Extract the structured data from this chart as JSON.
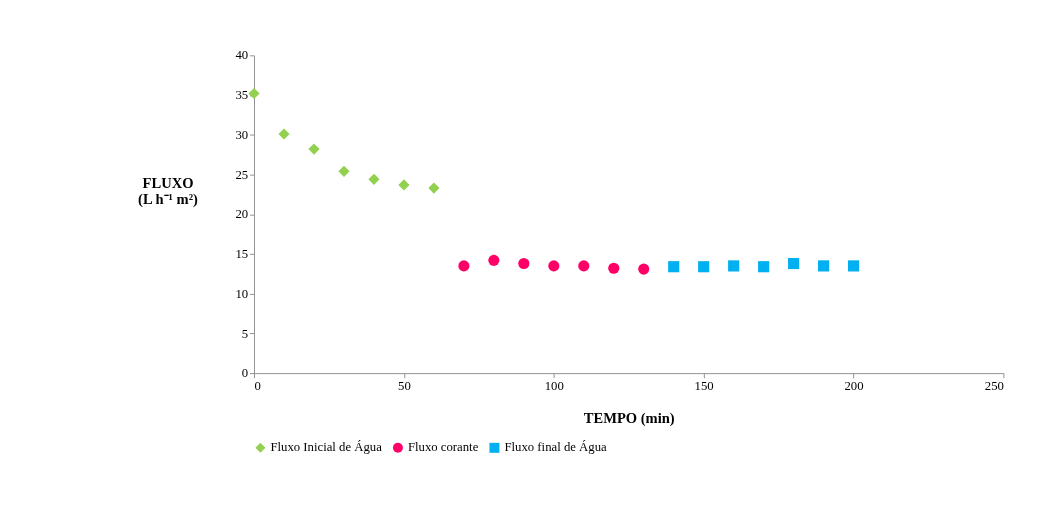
{
  "chart_data": {
    "type": "scatter",
    "xlabel": "TEMPO (min)",
    "ylabel": "FLUXO\n(L h⁻¹ m²)",
    "xlim": [
      0,
      250
    ],
    "xticks": [
      0,
      50,
      100,
      150,
      200,
      250
    ],
    "ylim": [
      0,
      40
    ],
    "yticks": [
      0,
      5,
      10,
      15,
      20,
      25,
      30,
      35,
      40
    ],
    "grid": false,
    "legend": "bottom",
    "series": [
      {
        "name": "Fluxo Inicial de Água",
        "color": "#92d050",
        "marker": "diamond",
        "x": [
          0,
          10,
          20,
          30,
          40,
          50,
          60
        ],
        "values": [
          35.2,
          30.1,
          28.2,
          25.4,
          24.4,
          23.7,
          23.3
        ]
      },
      {
        "name": "Fluxo corante",
        "color": "#ff0066",
        "marker": "circle",
        "x": [
          70,
          80,
          90,
          100,
          110,
          120,
          130
        ],
        "values": [
          13.5,
          14.2,
          13.8,
          13.5,
          13.5,
          13.2,
          13.1
        ]
      },
      {
        "name": "Fluxo final de Água",
        "color": "#00b0f0",
        "marker": "square",
        "x": [
          140,
          150,
          160,
          170,
          180,
          190,
          200
        ],
        "values": [
          13.4,
          13.4,
          13.5,
          13.4,
          13.8,
          13.5,
          13.5
        ]
      }
    ]
  }
}
